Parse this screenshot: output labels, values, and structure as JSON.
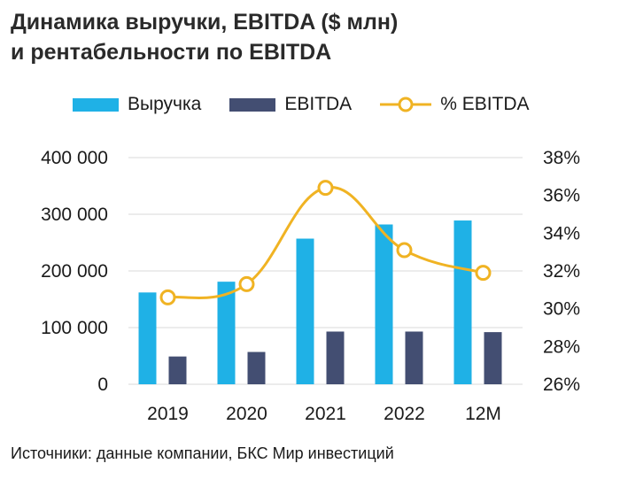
{
  "title": {
    "line1": "Динамика выручки, EBITDA ($ млн)",
    "line2": "и рентабельности по EBITDA"
  },
  "source": "Источники: данные компании, БКС Мир инвестиций",
  "colors": {
    "revenue": "#1fb1e6",
    "ebitda": "#434e72",
    "margin": "#f0b323",
    "grid": "#d9d9d9"
  },
  "chart_data": {
    "type": "bar",
    "categories": [
      "2019",
      "2020",
      "2021",
      "2022",
      "12M"
    ],
    "series": [
      {
        "name": "Выручка",
        "type": "bar",
        "axis": "left",
        "values": [
          162000,
          181000,
          257000,
          282000,
          289000
        ]
      },
      {
        "name": "EBITDA",
        "type": "bar",
        "axis": "left",
        "values": [
          49000,
          57000,
          93000,
          93000,
          92000
        ]
      },
      {
        "name": "% EBITDA",
        "type": "line",
        "axis": "right",
        "values": [
          30.6,
          31.3,
          36.4,
          33.1,
          31.9
        ]
      }
    ],
    "y_left": {
      "ylim": [
        0,
        400000
      ],
      "ticks": [
        "0",
        "100 000",
        "200 000",
        "300 000",
        "400 000"
      ]
    },
    "y_right": {
      "ylim": [
        26,
        38
      ],
      "ticks": [
        "26%",
        "28%",
        "30%",
        "32%",
        "34%",
        "36%",
        "38%"
      ]
    },
    "grid": true,
    "legend": "top"
  }
}
